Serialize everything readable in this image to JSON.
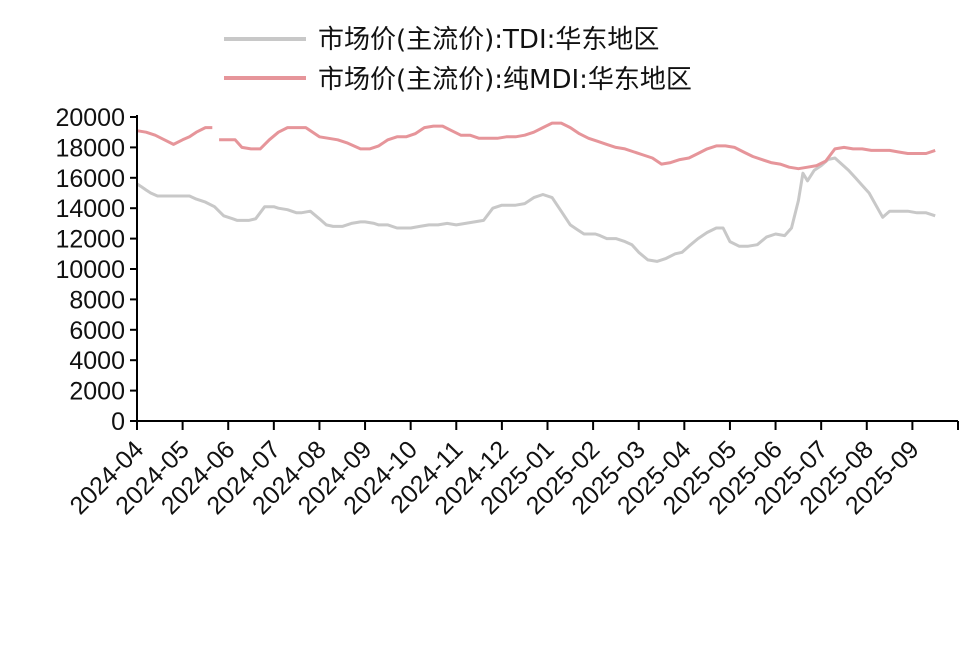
{
  "chart_data": {
    "type": "line",
    "title": "",
    "xlabel": "",
    "ylabel": "",
    "ylim": [
      0,
      20000
    ],
    "yticks": [
      0,
      2000,
      4000,
      6000,
      8000,
      10000,
      12000,
      14000,
      16000,
      18000,
      20000
    ],
    "categories": [
      "2024-04",
      "2024-05",
      "2024-06",
      "2024-07",
      "2024-08",
      "2024-09",
      "2024-10",
      "2024-11",
      "2024-12",
      "2025-01",
      "2025-02",
      "2025-03",
      "2025-04",
      "2025-05",
      "2025-06",
      "2025-07",
      "2025-08",
      "2025-09"
    ],
    "legend_position": "top",
    "grid": false,
    "series": [
      {
        "name": "市场价(主流价):TDI:华东地区",
        "color": "#c8c8c8",
        "x": [
          0.0,
          0.1,
          0.2,
          0.3,
          0.45,
          0.6,
          0.7,
          0.85,
          1.0,
          1.15,
          1.3,
          1.5,
          1.7,
          1.9,
          2.1,
          2.2,
          2.3,
          2.45,
          2.6,
          2.8,
          3.0,
          3.1,
          3.3,
          3.5,
          3.6,
          3.8,
          4.0,
          4.15,
          4.3,
          4.5,
          4.7,
          4.9,
          5.0,
          5.2,
          5.3,
          5.5,
          5.7,
          5.9,
          6.0,
          6.2,
          6.4,
          6.6,
          6.8,
          7.0,
          7.2,
          7.4,
          7.6,
          7.8,
          8.0,
          8.3,
          8.5,
          8.7,
          8.9,
          9.1,
          9.3,
          9.5,
          9.65,
          9.8,
          9.95,
          10.05,
          10.15,
          10.3,
          10.5,
          10.7,
          10.85,
          11.0,
          11.2,
          11.4,
          11.6,
          11.8,
          11.95,
          12.1,
          12.3,
          12.5,
          12.7,
          12.85,
          13.0,
          13.2,
          13.4,
          13.6,
          13.8,
          14.0,
          14.2,
          14.35,
          14.5,
          14.6,
          14.7,
          14.85,
          15.0,
          15.15,
          15.3,
          15.45,
          15.6,
          15.75,
          15.9,
          16.05,
          16.2,
          16.35,
          16.5,
          16.7,
          16.9,
          17.1,
          17.3,
          17.5
        ],
        "values": [
          15600,
          15400,
          15200,
          15000,
          14800,
          14800,
          14800,
          14800,
          14800,
          14800,
          14600,
          14400,
          14100,
          13500,
          13300,
          13200,
          13200,
          13200,
          13300,
          14100,
          14100,
          14000,
          13900,
          13700,
          13700,
          13800,
          13300,
          12900,
          12800,
          12800,
          13000,
          13100,
          13100,
          13000,
          12900,
          12900,
          12700,
          12700,
          12700,
          12800,
          12900,
          12900,
          13000,
          12900,
          13000,
          13100,
          13200,
          14000,
          14200,
          14200,
          14300,
          14700,
          14900,
          14700,
          13800,
          12900,
          12600,
          12300,
          12300,
          12300,
          12200,
          12000,
          12000,
          11800,
          11600,
          11100,
          10600,
          10500,
          10700,
          11000,
          11100,
          11500,
          12000,
          12400,
          12700,
          12700,
          11800,
          11500,
          11500,
          11600,
          12100,
          12300,
          12200,
          12700,
          14500,
          16300,
          15800,
          16500,
          16800,
          17200,
          17300,
          16900,
          16500,
          16000,
          15500,
          15000,
          14200,
          13400,
          13800,
          13800,
          13800,
          13700,
          13700,
          13500
        ]
      },
      {
        "name": "市场价(主流价):纯MDI:华东地区",
        "color": "#e6959a",
        "x": [
          0.0,
          0.2,
          0.4,
          0.6,
          0.8,
          1.0,
          1.15,
          1.3,
          1.5,
          1.65,
          1.75,
          1.8,
          2.0,
          2.15,
          2.3,
          2.5,
          2.7,
          2.9,
          3.1,
          3.3,
          3.5,
          3.7,
          4.0,
          4.2,
          4.4,
          4.6,
          4.9,
          5.1,
          5.3,
          5.5,
          5.7,
          5.9,
          6.1,
          6.3,
          6.5,
          6.7,
          6.9,
          7.1,
          7.3,
          7.5,
          7.7,
          7.9,
          8.1,
          8.3,
          8.5,
          8.7,
          8.9,
          9.1,
          9.3,
          9.5,
          9.7,
          9.9,
          10.1,
          10.3,
          10.5,
          10.7,
          10.9,
          11.1,
          11.3,
          11.5,
          11.7,
          11.9,
          12.1,
          12.3,
          12.5,
          12.7,
          12.9,
          13.1,
          13.3,
          13.5,
          13.7,
          13.9,
          14.1,
          14.3,
          14.5,
          14.7,
          14.9,
          15.1,
          15.3,
          15.5,
          15.7,
          15.9,
          16.1,
          16.3,
          16.5,
          16.7,
          16.9,
          17.1,
          17.3,
          17.5
        ],
        "values": [
          19100,
          19000,
          18800,
          18500,
          18200,
          18500,
          18700,
          19000,
          19300,
          19300,
          null,
          18500,
          18500,
          18500,
          18000,
          17900,
          17900,
          18500,
          19000,
          19300,
          19300,
          19300,
          18700,
          18600,
          18500,
          18300,
          17900,
          17900,
          18100,
          18500,
          18700,
          18700,
          18900,
          19300,
          19400,
          19400,
          19100,
          18800,
          18800,
          18600,
          18600,
          18600,
          18700,
          18700,
          18800,
          19000,
          19300,
          19600,
          19600,
          19300,
          18900,
          18600,
          18400,
          18200,
          18000,
          17900,
          17700,
          17500,
          17300,
          16900,
          17000,
          17200,
          17300,
          17600,
          17900,
          18100,
          18100,
          18000,
          17700,
          17400,
          17200,
          17000,
          16900,
          16700,
          16600,
          16700,
          16800,
          17100,
          17900,
          18000,
          17900,
          17900,
          17800,
          17800,
          17800,
          17700,
          17600,
          17600,
          17600,
          17800
        ]
      }
    ]
  }
}
